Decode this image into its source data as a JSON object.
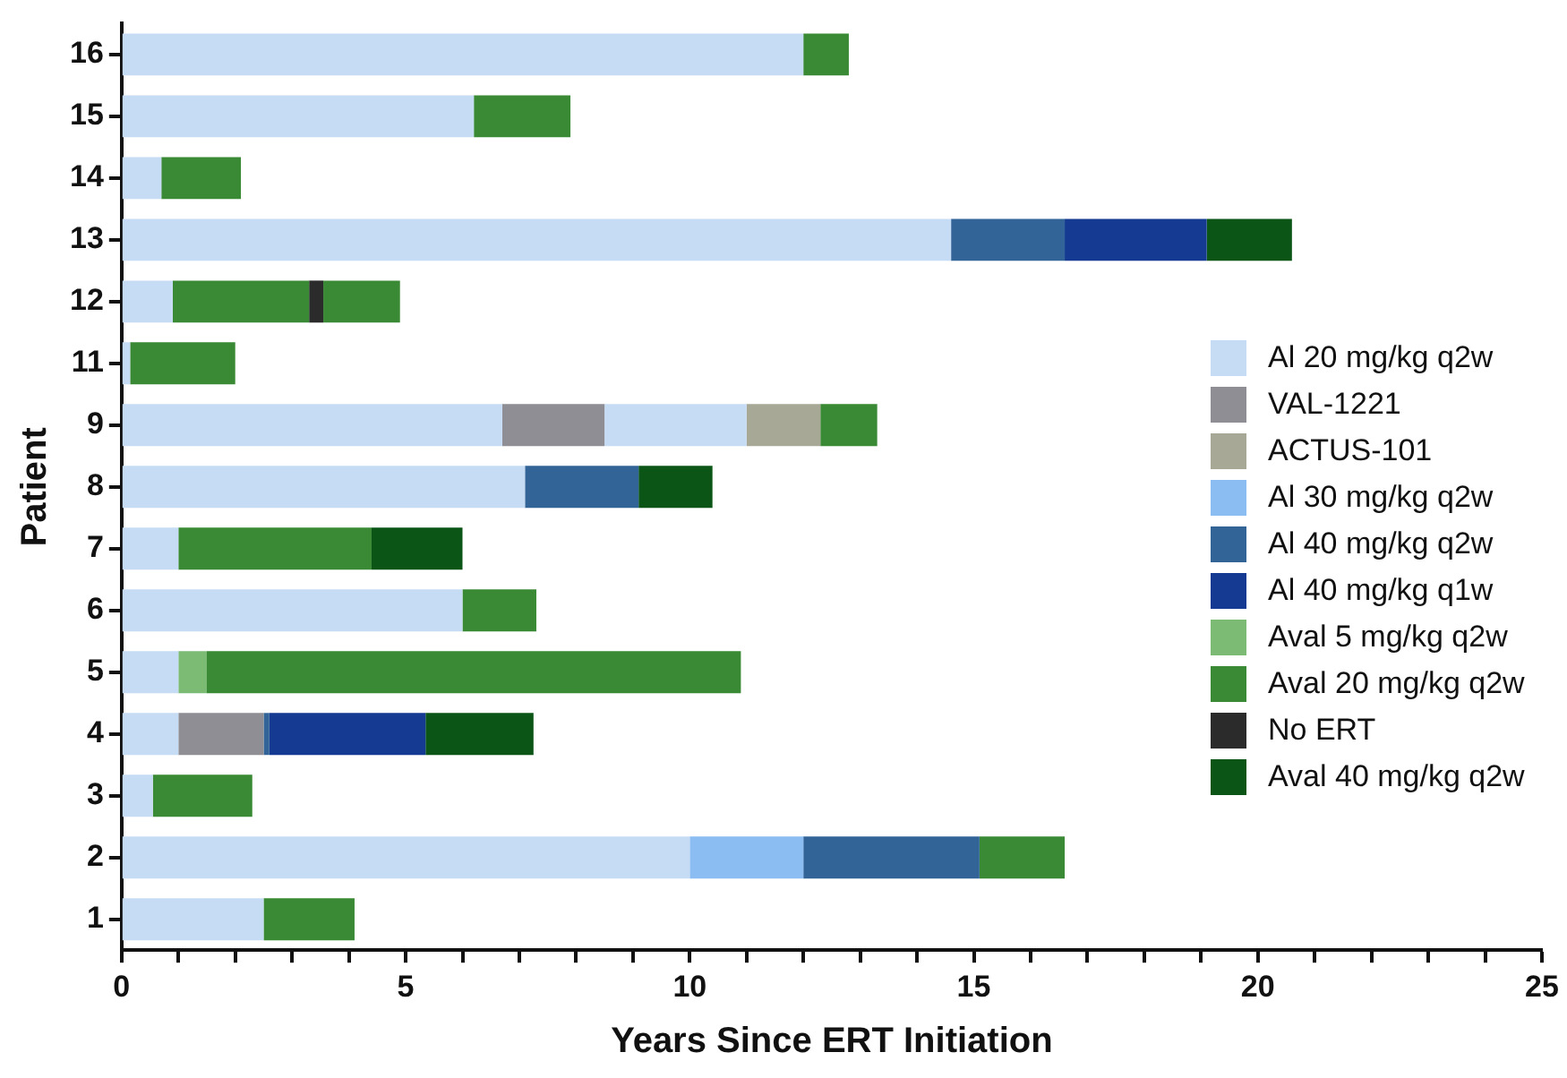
{
  "chart_data": {
    "type": "bar",
    "orientation": "horizontal",
    "stacked": true,
    "xlabel": "Years Since ERT Initiation",
    "ylabel": "Patient",
    "categories": [
      "16",
      "15",
      "14",
      "13",
      "12",
      "11",
      "9",
      "8",
      "7",
      "6",
      "5",
      "4",
      "3",
      "2",
      "1"
    ],
    "series": [
      {
        "name": "Al 20 mg/kg q2w",
        "color": "#c6dcf4",
        "values": [
          12.0,
          6.2,
          0.7,
          14.6,
          0.9,
          0.15,
          6.7,
          7.1,
          1.0,
          6.0,
          1.0,
          1.0,
          0.55,
          10.0,
          2.5
        ]
      },
      {
        "name": "VAL-1221",
        "color": "#8e8e94",
        "values": [
          null,
          null,
          null,
          null,
          null,
          null,
          1.8,
          null,
          null,
          null,
          null,
          1.5,
          null,
          null,
          null
        ]
      },
      {
        "color": "#c6dcf4",
        "values": [
          null,
          null,
          null,
          null,
          null,
          null,
          2.5,
          null,
          null,
          null,
          null,
          null,
          null,
          null,
          null
        ]
      },
      {
        "name": "ACTUS-101",
        "color": "#a8a896",
        "values": [
          null,
          null,
          null,
          null,
          null,
          null,
          1.3,
          null,
          null,
          null,
          null,
          null,
          null,
          null,
          null
        ]
      },
      {
        "name": "Al 30 mg/kg q2w",
        "color": "#8bbcf2",
        "values": [
          null,
          null,
          null,
          null,
          null,
          null,
          null,
          null,
          null,
          null,
          null,
          null,
          null,
          2.0,
          null
        ]
      },
      {
        "name": "Al 40 mg/kg q2w",
        "color": "#326498",
        "values": [
          null,
          null,
          null,
          2.0,
          null,
          null,
          null,
          2.0,
          null,
          null,
          null,
          0.1,
          null,
          3.1,
          null
        ]
      },
      {
        "name": "Al 40 mg/kg q1w",
        "color": "#143a92",
        "values": [
          null,
          null,
          null,
          2.5,
          null,
          null,
          null,
          null,
          null,
          null,
          null,
          2.75,
          null,
          null,
          null
        ]
      },
      {
        "name": "Aval 5 mg/kg q2w",
        "color": "#7bbb74",
        "values": [
          null,
          null,
          null,
          null,
          null,
          null,
          null,
          null,
          null,
          null,
          0.5,
          null,
          null,
          null,
          null
        ]
      },
      {
        "name": "Aval 20 mg/kg q2w",
        "color": "#3a8a35",
        "values": [
          0.8,
          1.7,
          1.4,
          null,
          2.4,
          1.85,
          1.0,
          null,
          3.4,
          1.3,
          9.4,
          null,
          1.75,
          1.5,
          1.6
        ]
      },
      {
        "name": "No ERT",
        "color": "#2b2b2b",
        "values": [
          null,
          null,
          null,
          null,
          0.25,
          null,
          null,
          null,
          null,
          null,
          null,
          null,
          null,
          null,
          null
        ]
      },
      {
        "color": "#3a8a35",
        "values": [
          null,
          null,
          null,
          null,
          1.35,
          null,
          null,
          null,
          null,
          null,
          null,
          null,
          null,
          null,
          null
        ]
      },
      {
        "name": "Aval 40 mg/kg q2w",
        "color": "#0b5617",
        "values": [
          null,
          null,
          null,
          1.5,
          null,
          null,
          null,
          1.3,
          1.6,
          null,
          null,
          1.9,
          null,
          null,
          null
        ]
      }
    ],
    "xlim": [
      0,
      25
    ],
    "xticks": [
      0,
      {
        "value": 1,
        "label": null
      },
      {
        "value": 2,
        "label": null
      },
      {
        "value": 3,
        "label": null
      },
      {
        "value": 4,
        "label": null
      },
      5,
      {
        "value": 6,
        "label": null
      },
      {
        "value": 7,
        "label": null
      },
      {
        "value": 8,
        "label": null
      },
      {
        "value": 9,
        "label": null
      },
      10,
      {
        "value": 11,
        "label": null
      },
      {
        "value": 12,
        "label": null
      },
      {
        "value": 13,
        "label": null
      },
      {
        "value": 14,
        "label": null
      },
      15,
      {
        "value": 16,
        "label": null
      },
      {
        "value": 17,
        "label": null
      },
      {
        "value": 18,
        "label": null
      },
      {
        "value": 19,
        "label": null
      },
      20,
      {
        "value": 21,
        "label": null
      },
      {
        "value": 22,
        "label": null
      },
      {
        "value": 23,
        "label": null
      },
      {
        "value": 24,
        "label": null
      },
      25
    ],
    "grid": false,
    "legend": "right"
  }
}
